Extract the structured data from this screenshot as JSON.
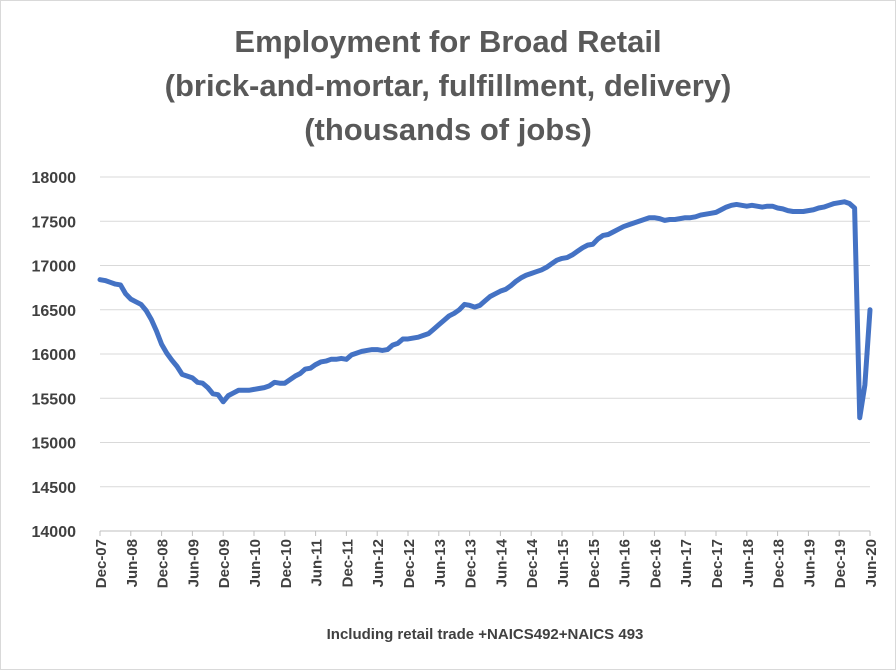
{
  "chart_data": {
    "type": "line",
    "title": "Employment for Broad Retail",
    "subtitle": "(brick-and-mortar, fulfillment, delivery)",
    "units": "(thousands of jobs)",
    "note": "Including retail trade +NAICS492+NAICS 493",
    "xlabel": "",
    "ylabel": "",
    "ylim": [
      14000,
      18000
    ],
    "yticks": [
      14000,
      14500,
      15000,
      15500,
      16000,
      16500,
      17000,
      17500,
      18000
    ],
    "xtick_labels": [
      "Dec-07",
      "Jun-08",
      "Dec-08",
      "Jun-09",
      "Dec-09",
      "Jun-10",
      "Dec-10",
      "Jun-11",
      "Dec-11",
      "Jun-12",
      "Dec-12",
      "Jun-13",
      "Dec-13",
      "Jun-14",
      "Dec-14",
      "Jun-15",
      "Dec-15",
      "Jun-16",
      "Dec-16",
      "Jun-17",
      "Dec-17",
      "Jun-18",
      "Dec-18",
      "Jun-19",
      "Dec-19",
      "Jun-20"
    ],
    "grid": true,
    "legend": "none",
    "line_color": "#4472c4",
    "series": [
      {
        "x": [
          "Dec-07",
          "Jan-08",
          "Feb-08",
          "Mar-08",
          "Apr-08",
          "May-08",
          "Jun-08",
          "Jul-08",
          "Aug-08",
          "Sep-08",
          "Oct-08",
          "Nov-08",
          "Dec-08",
          "Jan-09",
          "Feb-09",
          "Mar-09",
          "Apr-09",
          "May-09",
          "Jun-09",
          "Jul-09",
          "Aug-09",
          "Sep-09",
          "Oct-09",
          "Nov-09",
          "Dec-09",
          "Jan-10",
          "Feb-10",
          "Mar-10",
          "Apr-10",
          "May-10",
          "Jun-10",
          "Jul-10",
          "Aug-10",
          "Sep-10",
          "Oct-10",
          "Nov-10",
          "Dec-10",
          "Jan-11",
          "Feb-11",
          "Mar-11",
          "Apr-11",
          "May-11",
          "Jun-11",
          "Jul-11",
          "Aug-11",
          "Sep-11",
          "Oct-11",
          "Nov-11",
          "Dec-11",
          "Jan-12",
          "Feb-12",
          "Mar-12",
          "Apr-12",
          "May-12",
          "Jun-12",
          "Jul-12",
          "Aug-12",
          "Sep-12",
          "Oct-12",
          "Nov-12",
          "Dec-12",
          "Jan-13",
          "Feb-13",
          "Mar-13",
          "Apr-13",
          "May-13",
          "Jun-13",
          "Jul-13",
          "Aug-13",
          "Sep-13",
          "Oct-13",
          "Nov-13",
          "Dec-13",
          "Jan-14",
          "Feb-14",
          "Mar-14",
          "Apr-14",
          "May-14",
          "Jun-14",
          "Jul-14",
          "Aug-14",
          "Sep-14",
          "Oct-14",
          "Nov-14",
          "Dec-14",
          "Jan-15",
          "Feb-15",
          "Mar-15",
          "Apr-15",
          "May-15",
          "Jun-15",
          "Jul-15",
          "Aug-15",
          "Sep-15",
          "Oct-15",
          "Nov-15",
          "Dec-15",
          "Jan-16",
          "Feb-16",
          "Mar-16",
          "Apr-16",
          "May-16",
          "Jun-16",
          "Jul-16",
          "Aug-16",
          "Sep-16",
          "Oct-16",
          "Nov-16",
          "Dec-16",
          "Jan-17",
          "Feb-17",
          "Mar-17",
          "Apr-17",
          "May-17",
          "Jun-17",
          "Jul-17",
          "Aug-17",
          "Sep-17",
          "Oct-17",
          "Nov-17",
          "Dec-17",
          "Jan-18",
          "Feb-18",
          "Mar-18",
          "Apr-18",
          "May-18",
          "Jun-18",
          "Jul-18",
          "Aug-18",
          "Sep-18",
          "Oct-18",
          "Nov-18",
          "Dec-18",
          "Jan-19",
          "Feb-19",
          "Mar-19",
          "Apr-19",
          "May-19",
          "Jun-19",
          "Jul-19",
          "Aug-19",
          "Sep-19",
          "Oct-19",
          "Nov-19",
          "Dec-19",
          "Jan-20",
          "Feb-20",
          "Mar-20",
          "Apr-20",
          "May-20",
          "Jun-20"
        ],
        "values": [
          16840,
          16830,
          16810,
          16790,
          16780,
          16680,
          16620,
          16590,
          16560,
          16490,
          16390,
          16260,
          16110,
          16010,
          15930,
          15860,
          15770,
          15750,
          15730,
          15680,
          15670,
          15620,
          15550,
          15540,
          15460,
          15530,
          15560,
          15590,
          15590,
          15590,
          15600,
          15610,
          15620,
          15640,
          15680,
          15670,
          15670,
          15710,
          15750,
          15780,
          15830,
          15840,
          15880,
          15910,
          15920,
          15940,
          15940,
          15950,
          15940,
          15990,
          16010,
          16030,
          16040,
          16050,
          16050,
          16040,
          16050,
          16100,
          16120,
          16170,
          16170,
          16180,
          16190,
          16210,
          16230,
          16280,
          16330,
          16380,
          16430,
          16460,
          16500,
          16560,
          16550,
          16530,
          16550,
          16600,
          16650,
          16680,
          16710,
          16730,
          16770,
          16820,
          16860,
          16890,
          16910,
          16930,
          16950,
          16980,
          17020,
          17060,
          17080,
          17090,
          17120,
          17160,
          17200,
          17230,
          17240,
          17300,
          17340,
          17350,
          17380,
          17410,
          17440,
          17460,
          17480,
          17500,
          17520,
          17540,
          17540,
          17530,
          17510,
          17520,
          17520,
          17530,
          17540,
          17540,
          17550,
          17570,
          17580,
          17590,
          17600,
          17630,
          17660,
          17680,
          17690,
          17680,
          17670,
          17680,
          17670,
          17660,
          17670,
          17670,
          17650,
          17640,
          17620,
          17610,
          17610,
          17610,
          17620,
          17630,
          17650,
          17660,
          17680,
          17700,
          17710,
          17720,
          17700,
          17650,
          15280,
          15650,
          16500
        ]
      }
    ]
  }
}
